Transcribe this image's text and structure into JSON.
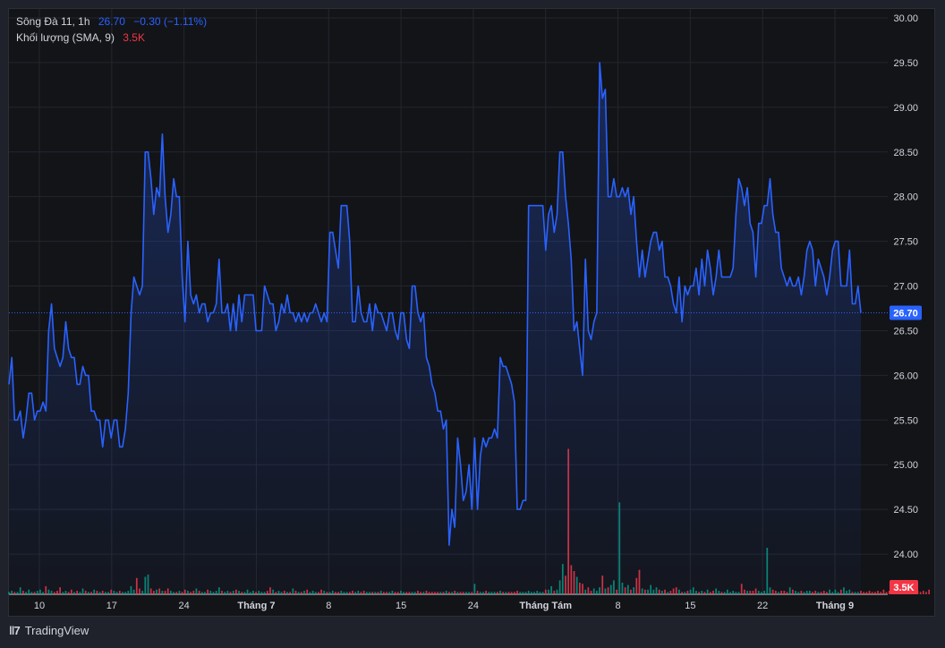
{
  "legend": {
    "symbol": "Sông Đà 11, 1h",
    "last_price": "26.70",
    "change": "−0.30 (−1.11%)",
    "volume_label": "Khối lượng (SMA, 9)",
    "volume_value": "3.5K"
  },
  "branding": {
    "name": "TradingView"
  },
  "colors": {
    "line": "#2962ff",
    "price_badge": "#2962ff",
    "volume_badge": "#f23645",
    "vol_up": "#089981",
    "vol_down": "#f23645",
    "grid": "#23262e",
    "axis_text": "#d1d4dc"
  },
  "chart_data": {
    "type": "line",
    "title": "Sông Đà 11, 1h",
    "y_ticks": [
      "30.00",
      "29.50",
      "29.00",
      "28.50",
      "28.00",
      "27.50",
      "27.00",
      "26.50",
      "26.00",
      "25.50",
      "25.00",
      "24.50",
      "24.00"
    ],
    "x_ticks": [
      "10",
      "17",
      "24",
      "Tháng 7",
      "8",
      "15",
      "24",
      "Tháng Tám",
      "8",
      "15",
      "22",
      "Tháng 9"
    ],
    "x_ticks_bold": [
      "Tháng 7",
      "Tháng Tám",
      "Tháng 9"
    ],
    "ylim": [
      23.55,
      30.1
    ],
    "last_price_label": "26.70",
    "volume_badge_label": "3.5K",
    "grid": true,
    "series": [
      {
        "name": "Sông Đà 11",
        "values": [
          25.9,
          26.2,
          25.5,
          25.5,
          25.6,
          25.3,
          25.5,
          25.8,
          25.8,
          25.5,
          25.6,
          25.6,
          25.7,
          25.6,
          26.5,
          26.8,
          26.3,
          26.2,
          26.1,
          26.2,
          26.6,
          26.3,
          26.2,
          26.2,
          25.9,
          25.9,
          26.1,
          26.0,
          26.0,
          25.6,
          25.6,
          25.5,
          25.5,
          25.2,
          25.5,
          25.5,
          25.3,
          25.5,
          25.5,
          25.2,
          25.2,
          25.4,
          25.8,
          26.7,
          27.1,
          27.0,
          26.9,
          27.0,
          28.5,
          28.5,
          28.2,
          27.8,
          28.1,
          28.0,
          28.7,
          28.0,
          27.6,
          27.8,
          28.2,
          28.0,
          28.0,
          27.1,
          26.6,
          27.5,
          26.9,
          26.8,
          26.9,
          26.7,
          26.8,
          26.8,
          26.6,
          26.7,
          26.7,
          26.8,
          27.3,
          26.7,
          26.7,
          26.8,
          26.5,
          26.8,
          26.5,
          26.9,
          26.6,
          26.9,
          26.9,
          26.9,
          26.9,
          26.5,
          26.5,
          26.5,
          27.0,
          26.9,
          26.8,
          26.8,
          26.5,
          26.6,
          26.8,
          26.7,
          26.9,
          26.7,
          26.7,
          26.6,
          26.7,
          26.6,
          26.7,
          26.6,
          26.7,
          26.7,
          26.8,
          26.7,
          26.6,
          26.7,
          26.6,
          27.6,
          27.6,
          27.4,
          27.2,
          27.9,
          27.9,
          27.9,
          27.5,
          26.6,
          26.6,
          27.0,
          26.7,
          26.6,
          26.6,
          26.8,
          26.5,
          26.8,
          26.7,
          26.7,
          26.6,
          26.5,
          26.7,
          26.7,
          26.5,
          26.4,
          26.7,
          26.7,
          26.4,
          26.3,
          27.0,
          27.0,
          26.7,
          26.6,
          26.7,
          26.2,
          26.1,
          25.9,
          25.8,
          25.6,
          25.6,
          25.4,
          25.5,
          24.1,
          24.5,
          24.3,
          25.3,
          25.0,
          24.6,
          24.7,
          25.0,
          24.5,
          25.3,
          24.5,
          25.1,
          25.3,
          25.2,
          25.3,
          25.3,
          25.4,
          25.3,
          26.2,
          26.1,
          26.1,
          26.0,
          25.9,
          25.7,
          24.5,
          24.5,
          24.6,
          24.6,
          27.9,
          27.9,
          27.9,
          27.9,
          27.9,
          27.9,
          27.4,
          27.8,
          27.9,
          27.6,
          27.8,
          28.5,
          28.5,
          28.0,
          27.7,
          27.3,
          26.5,
          26.6,
          26.3,
          26.0,
          27.3,
          26.5,
          26.4,
          26.6,
          26.7,
          29.5,
          29.1,
          29.2,
          28.0,
          28.0,
          28.2,
          28.0,
          28.0,
          28.1,
          28.0,
          28.1,
          27.8,
          28.0,
          27.5,
          27.1,
          27.4,
          27.1,
          27.3,
          27.5,
          27.6,
          27.6,
          27.4,
          27.5,
          27.1,
          27.1,
          27.0,
          26.8,
          26.7,
          27.1,
          26.6,
          27.0,
          26.9,
          27.0,
          27.0,
          27.2,
          26.9,
          27.3,
          27.0,
          27.4,
          27.2,
          26.9,
          27.1,
          27.4,
          27.1,
          27.1,
          27.1,
          27.1,
          27.2,
          27.8,
          28.2,
          28.1,
          27.9,
          28.1,
          27.7,
          27.6,
          27.1,
          27.7,
          27.7,
          27.9,
          27.9,
          28.2,
          27.8,
          27.6,
          27.6,
          27.2,
          27.1,
          27.0,
          27.1,
          27.0,
          27.0,
          27.1,
          26.9,
          27.1,
          27.4,
          27.5,
          27.4,
          27.0,
          27.3,
          27.2,
          27.1,
          26.9,
          27.1,
          27.4,
          27.5,
          27.5,
          27.0,
          27.0,
          27.0,
          27.4,
          26.8,
          26.8,
          27.0,
          26.7
        ]
      }
    ],
    "volume": [
      0.2,
      0.3,
      0.2,
      0.2,
      0.6,
      0.3,
      0.2,
      0.4,
      0.2,
      0.2,
      0.3,
      0.4,
      0.2,
      0.7,
      0.4,
      0.3,
      0.2,
      0.3,
      0.6,
      0.2,
      0.3,
      0.2,
      0.4,
      0.2,
      0.3,
      0.2,
      0.5,
      0.3,
      0.2,
      0.2,
      0.4,
      0.3,
      0.2,
      0.3,
      0.2,
      0.2,
      0.4,
      0.3,
      0.2,
      0.3,
      0.2,
      0.2,
      0.3,
      0.7,
      0.4,
      1.4,
      0.5,
      0.3,
      1.5,
      1.7,
      0.5,
      0.3,
      0.4,
      0.5,
      0.3,
      0.3,
      0.5,
      0.3,
      0.2,
      0.2,
      0.3,
      0.2,
      0.4,
      0.3,
      0.2,
      0.3,
      0.5,
      0.3,
      0.2,
      0.2,
      0.4,
      0.3,
      0.2,
      0.3,
      0.6,
      0.3,
      0.2,
      0.3,
      0.2,
      0.3,
      0.4,
      0.3,
      0.2,
      0.2,
      0.4,
      0.2,
      0.3,
      0.2,
      0.3,
      0.2,
      0.2,
      0.3,
      0.6,
      0.4,
      0.2,
      0.3,
      0.2,
      0.3,
      0.2,
      0.2,
      0.5,
      0.3,
      0.2,
      0.2,
      0.3,
      0.4,
      0.2,
      0.3,
      0.2,
      0.2,
      0.4,
      0.3,
      0.2,
      0.2,
      0.3,
      0.2,
      0.2,
      0.3,
      0.2,
      0.2,
      0.2,
      0.3,
      0.2,
      0.3,
      0.2,
      0.3,
      0.2,
      0.2,
      0.2,
      0.2,
      0.2,
      0.3,
      0.2,
      0.2,
      0.2,
      0.3,
      0.2,
      0.2,
      0.3,
      0.2,
      0.2,
      0.2,
      0.2,
      0.2,
      0.3,
      0.2,
      0.2,
      0.3,
      0.2,
      0.2,
      0.2,
      0.2,
      0.2,
      0.2,
      0.3,
      0.2,
      0.2,
      0.3,
      0.2,
      0.2,
      0.2,
      0.2,
      0.2,
      0.2,
      0.9,
      0.3,
      0.2,
      0.2,
      0.3,
      0.2,
      0.2,
      0.2,
      0.2,
      0.3,
      0.2,
      0.2,
      0.2,
      0.2,
      0.2,
      0.3,
      0.2,
      0.2,
      0.2,
      0.3,
      0.2,
      0.2,
      0.3,
      0.2,
      0.2,
      0.4,
      0.4,
      0.7,
      0.3,
      0.4,
      1.2,
      2.6,
      1.6,
      12.5,
      2.5,
      2.0,
      1.5,
      1.0,
      0.9,
      0.4,
      0.6,
      0.3,
      0.5,
      0.3,
      0.6,
      1.6,
      0.5,
      0.6,
      0.8,
      1.2,
      0.4,
      7.9,
      1.0,
      0.6,
      0.8,
      0.4,
      0.6,
      1.4,
      2.1,
      0.5,
      0.4,
      0.4,
      0.8,
      0.4,
      0.6,
      0.4,
      0.3,
      0.4,
      0.2,
      0.3,
      0.5,
      0.6,
      0.4,
      0.2,
      0.2,
      0.3,
      0.4,
      0.6,
      0.3,
      0.2,
      0.3,
      0.2,
      0.4,
      0.2,
      0.3,
      0.5,
      0.3,
      0.2,
      0.2,
      0.4,
      0.2,
      0.3,
      0.2,
      0.2,
      0.9,
      0.4,
      0.3,
      0.3,
      0.3,
      0.5,
      0.3,
      0.2,
      0.3,
      4.0,
      0.6,
      0.4,
      0.3,
      0.2,
      0.3,
      0.3,
      0.2,
      0.6,
      0.4,
      0.3,
      0.2,
      0.3,
      0.2,
      0.3,
      0.3,
      0.2,
      0.3,
      0.2,
      0.2,
      0.3,
      0.2,
      0.4,
      0.2,
      0.4,
      0.2,
      0.4,
      0.6,
      0.3,
      0.4,
      0.2,
      0.2,
      0.2,
      0.3,
      0.2,
      0.2,
      0.3,
      0.2,
      0.2,
      0.3,
      0.2,
      0.4,
      0.2,
      0.3,
      0.2,
      0.3,
      0.6,
      0.4,
      0.2,
      0.3,
      0.2,
      0.4,
      0.2,
      0.3,
      0.2,
      0.3,
      0.2,
      0.4
    ]
  }
}
